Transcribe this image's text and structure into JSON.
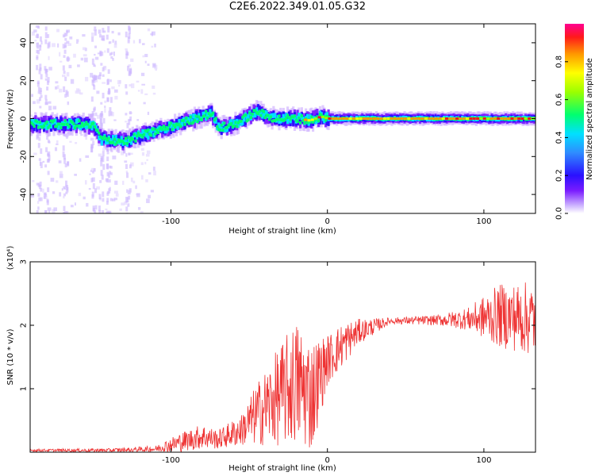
{
  "title": "C2E6.2022.349.01.05.G32",
  "colors": {
    "snr_line": "#ee3333",
    "axis": "#000000",
    "background": "#ffffff"
  },
  "chart_data": [
    {
      "type": "heatmap",
      "xlabel": "Height of straight line (km)",
      "ylabel": "Frequency (Hz)",
      "xlim": [
        -190,
        133
      ],
      "ylim": [
        -50,
        50
      ],
      "xticks": [
        -100,
        0,
        100
      ],
      "xtick_labels": [
        "-100",
        "0",
        "100"
      ],
      "yticks": [
        -40,
        -20,
        0,
        20,
        40
      ],
      "ytick_labels": [
        "-40",
        "-20",
        "0",
        "20",
        "40"
      ],
      "colorbar": {
        "label": "Normalized spectral amplitude",
        "range": [
          0,
          1
        ],
        "ticks": [
          0.0,
          0.2,
          0.4,
          0.6,
          0.8
        ],
        "tick_labels": [
          "0.0",
          "0.2",
          "0.4",
          "0.6",
          "0.8"
        ]
      },
      "ridge": [
        {
          "x": -190,
          "y": -3
        },
        {
          "x": -160,
          "y": -3
        },
        {
          "x": -150,
          "y": -4
        },
        {
          "x": -145,
          "y": -11
        },
        {
          "x": -130,
          "y": -12
        },
        {
          "x": -120,
          "y": -9
        },
        {
          "x": -100,
          "y": -4
        },
        {
          "x": -85,
          "y": 0
        },
        {
          "x": -75,
          "y": 3
        },
        {
          "x": -70,
          "y": -5
        },
        {
          "x": -60,
          "y": -3
        },
        {
          "x": -45,
          "y": 4
        },
        {
          "x": -40,
          "y": 1
        },
        {
          "x": -32,
          "y": 0
        },
        {
          "x": -20,
          "y": 0
        },
        {
          "x": -12,
          "y": -1
        },
        {
          "x": -5,
          "y": 1
        },
        {
          "x": 0,
          "y": 0
        },
        {
          "x": 50,
          "y": 0
        },
        {
          "x": 133,
          "y": 0
        }
      ]
    },
    {
      "type": "line",
      "xlabel": "Height of straight line (km)",
      "ylabel": "SNR (10 * v/v)",
      "y_multiplier": "(x10⁴)",
      "xlim": [
        -190,
        133
      ],
      "ylim": [
        0,
        3
      ],
      "xticks": [
        -100,
        0,
        100
      ],
      "xtick_labels": [
        "-100",
        "0",
        "100"
      ],
      "yticks": [
        1,
        2,
        3
      ],
      "ytick_labels": [
        "1",
        "2",
        "3"
      ],
      "series": [
        {
          "envelope": [
            {
              "x": -190,
              "y": 0.03,
              "amp": 0.02
            },
            {
              "x": -140,
              "y": 0.03,
              "amp": 0.03
            },
            {
              "x": -110,
              "y": 0.05,
              "amp": 0.05
            },
            {
              "x": -95,
              "y": 0.15,
              "amp": 0.15
            },
            {
              "x": -80,
              "y": 0.25,
              "amp": 0.2
            },
            {
              "x": -70,
              "y": 0.2,
              "amp": 0.15
            },
            {
              "x": -55,
              "y": 0.35,
              "amp": 0.25
            },
            {
              "x": -45,
              "y": 0.6,
              "amp": 0.5
            },
            {
              "x": -30,
              "y": 0.9,
              "amp": 0.8
            },
            {
              "x": -20,
              "y": 1.1,
              "amp": 1.0
            },
            {
              "x": -10,
              "y": 0.9,
              "amp": 0.9
            },
            {
              "x": 0,
              "y": 1.45,
              "amp": 0.4
            },
            {
              "x": 10,
              "y": 1.7,
              "amp": 0.35
            },
            {
              "x": 20,
              "y": 1.9,
              "amp": 0.2
            },
            {
              "x": 40,
              "y": 2.07,
              "amp": 0.05
            },
            {
              "x": 70,
              "y": 2.08,
              "amp": 0.08
            },
            {
              "x": 90,
              "y": 2.1,
              "amp": 0.18
            },
            {
              "x": 110,
              "y": 2.15,
              "amp": 0.5
            },
            {
              "x": 133,
              "y": 2.1,
              "amp": 0.6
            }
          ]
        }
      ]
    }
  ]
}
